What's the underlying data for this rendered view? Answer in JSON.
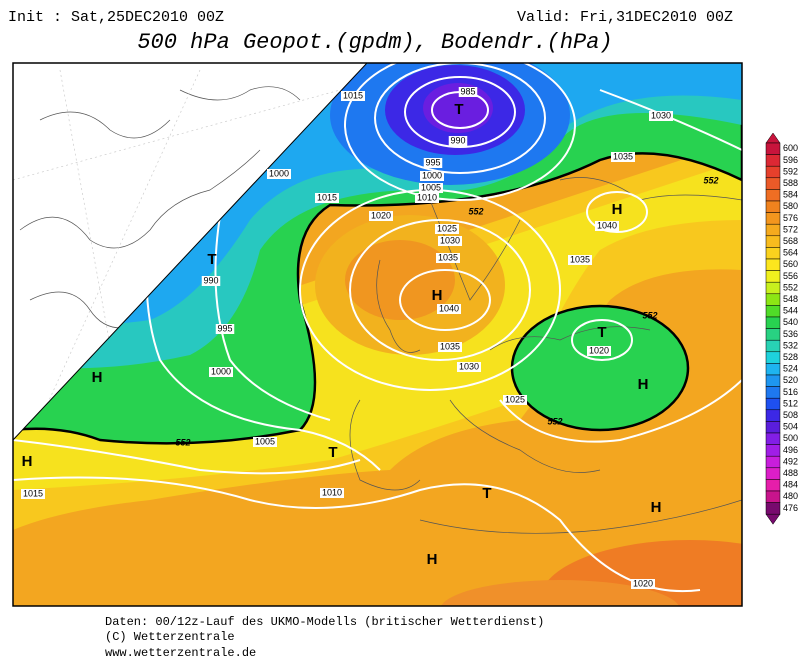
{
  "header": {
    "init": "Init : Sat,25DEC2010 00Z",
    "valid": "Valid: Fri,31DEC2010 00Z",
    "title": "500 hPa Geopot.(gpdm), Bodendr.(hPa)"
  },
  "map": {
    "pressure_centers": [
      "T",
      "H",
      "T",
      "H",
      "T",
      "H",
      "H",
      "T",
      "H",
      "T",
      "H",
      "H"
    ],
    "isobar_labels": [
      "985",
      "990",
      "995",
      "1000",
      "1005",
      "1010",
      "1015",
      "1030",
      "1035",
      "1000",
      "1015",
      "1020",
      "1025",
      "1030",
      "1035",
      "1040",
      "1035",
      "990",
      "995",
      "1040",
      "1035",
      "1030",
      "1020",
      "1000",
      "1025",
      "1005",
      "1015",
      "1010",
      "1020"
    ],
    "contour_labels": [
      "552",
      "552",
      "552",
      "552",
      "552"
    ]
  },
  "legend": {
    "levels": [
      600,
      596,
      592,
      588,
      584,
      580,
      576,
      572,
      568,
      564,
      560,
      556,
      552,
      548,
      544,
      540,
      536,
      532,
      528,
      524,
      520,
      516,
      512,
      508,
      504,
      500,
      496,
      492,
      488,
      484,
      480,
      476
    ],
    "colors": [
      "#c8143c",
      "#dc2834",
      "#e6402c",
      "#eb5a28",
      "#ef6e23",
      "#f0821e",
      "#f3961e",
      "#f5aa1e",
      "#f8bc1e",
      "#fad21e",
      "#fce61e",
      "#f0f01e",
      "#c8f01e",
      "#8ce614",
      "#50dc28",
      "#28d250",
      "#28d282",
      "#28d2b4",
      "#1ed2dc",
      "#1eb4f0",
      "#1e96f0",
      "#1e78f0",
      "#1e50f0",
      "#3c28e6",
      "#5a1edc",
      "#821ee6",
      "#a01ee6",
      "#c81edc",
      "#dc1ec8",
      "#e61eaa",
      "#c8148c",
      "#780a6e"
    ]
  },
  "footer": [
    "Daten: 00/12z-Lauf des UKMO-Modells (britischer Wetterdienst)",
    "(C) Wetterzentrale",
    "www.wetterzentrale.de"
  ]
}
